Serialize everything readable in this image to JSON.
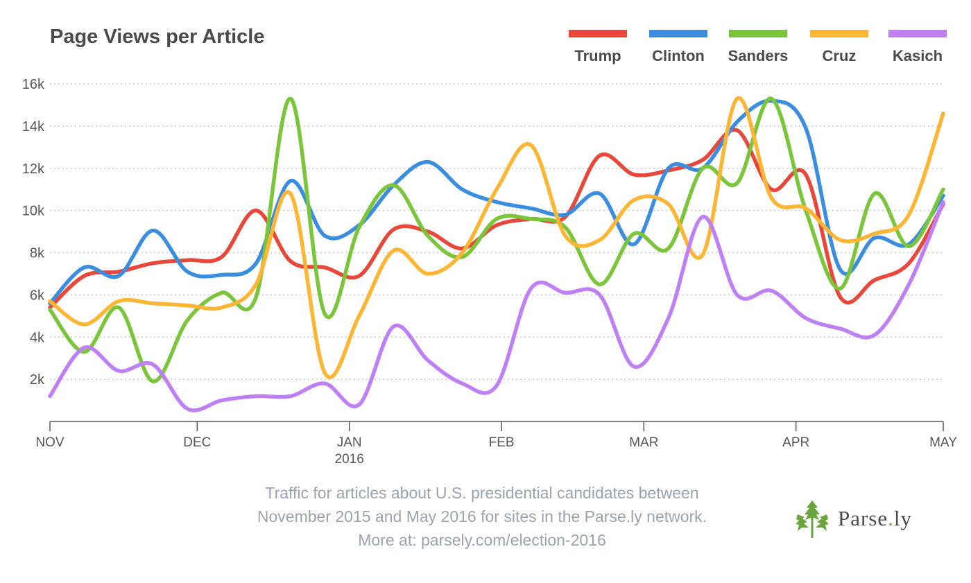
{
  "chart_data": {
    "type": "line",
    "title": "Page Views per Article",
    "xlabel": "",
    "ylabel": "",
    "ylim": [
      0,
      16000
    ],
    "y_ticks": [
      2000,
      4000,
      6000,
      8000,
      10000,
      12000,
      14000,
      16000
    ],
    "y_tick_labels": [
      "2k",
      "4k",
      "6k",
      "8k",
      "10k",
      "12k",
      "14k",
      "16k"
    ],
    "x_range": [
      "2015-11-01",
      "2016-05-01"
    ],
    "x_ticks": [
      {
        "date": "2015-11-01",
        "label": "NOV",
        "sublabel": ""
      },
      {
        "date": "2015-12-01",
        "label": "DEC",
        "sublabel": ""
      },
      {
        "date": "2016-01-01",
        "label": "JAN",
        "sublabel": "2016"
      },
      {
        "date": "2016-02-01",
        "label": "FEB",
        "sublabel": ""
      },
      {
        "date": "2016-03-01",
        "label": "MAR",
        "sublabel": ""
      },
      {
        "date": "2016-04-01",
        "label": "APR",
        "sublabel": ""
      },
      {
        "date": "2016-05-01",
        "label": "MAY",
        "sublabel": ""
      }
    ],
    "grid": true,
    "legend_position": "top-right",
    "x": [
      "2015-11-01",
      "2015-11-08",
      "2015-11-15",
      "2015-11-22",
      "2015-11-29",
      "2015-12-06",
      "2015-12-13",
      "2015-12-20",
      "2015-12-27",
      "2016-01-03",
      "2016-01-10",
      "2016-01-17",
      "2016-01-24",
      "2016-01-31",
      "2016-02-07",
      "2016-02-14",
      "2016-02-21",
      "2016-02-28",
      "2016-03-06",
      "2016-03-13",
      "2016-03-20",
      "2016-03-27",
      "2016-04-03",
      "2016-04-10",
      "2016-04-17",
      "2016-04-24",
      "2016-05-01"
    ],
    "series": [
      {
        "name": "Trump",
        "color": "#e8473a",
        "values": [
          5400,
          6900,
          7100,
          7500,
          7650,
          7800,
          10000,
          7600,
          7300,
          6900,
          9100,
          9000,
          8200,
          9300,
          9600,
          9700,
          12600,
          11700,
          11900,
          12400,
          13800,
          11000,
          11700,
          5900,
          6700,
          7500,
          10300
        ]
      },
      {
        "name": "Clinton",
        "color": "#3b8de0",
        "values": [
          5600,
          7300,
          6900,
          9050,
          7100,
          6950,
          7500,
          11400,
          8800,
          9300,
          11200,
          12300,
          11000,
          10400,
          10100,
          9800,
          10800,
          8400,
          12000,
          12000,
          14200,
          15200,
          13900,
          7200,
          8700,
          8400,
          10700
        ]
      },
      {
        "name": "Sanders",
        "color": "#7ac53a",
        "values": [
          5300,
          3300,
          5400,
          1900,
          4800,
          6100,
          5900,
          15300,
          5100,
          9200,
          11200,
          8800,
          7800,
          9600,
          9600,
          9200,
          6500,
          8900,
          8200,
          12000,
          11300,
          15300,
          10000,
          6300,
          10800,
          8300,
          11000
        ]
      },
      {
        "name": "Cruz",
        "color": "#fdb634",
        "values": [
          5700,
          4600,
          5700,
          5600,
          5500,
          5400,
          6500,
          10800,
          2300,
          5000,
          8100,
          7000,
          8000,
          11000,
          13100,
          8800,
          8600,
          10500,
          10300,
          7900,
          15300,
          10600,
          10100,
          8600,
          8900,
          9800,
          14600
        ]
      },
      {
        "name": "Kasich",
        "color": "#bf80f5",
        "values": [
          1200,
          3500,
          2400,
          2700,
          600,
          1000,
          1200,
          1200,
          1800,
          800,
          4500,
          2900,
          1800,
          1700,
          6300,
          6100,
          6000,
          2600,
          4900,
          9700,
          6000,
          6200,
          4900,
          4400,
          4100,
          6500,
          10400
        ]
      }
    ]
  },
  "caption": {
    "line1": "Traffic for articles about U.S. presidential candidates between",
    "line2": "November 2015 and May 2016 for sites in the Parse.ly network.",
    "line3": "More at: parsely.com/election-2016"
  },
  "brand": {
    "name_part1": "Parse",
    "name_dot": ".",
    "name_part2": "ly",
    "logo_icon": "parsley-leaf-icon",
    "logo_color": "#6aa43c"
  }
}
